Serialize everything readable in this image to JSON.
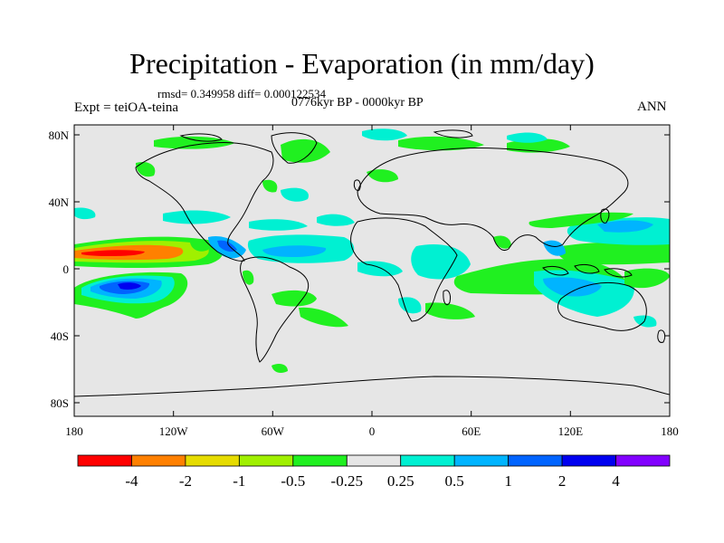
{
  "title": "Precipitation - Evaporation (in mm/day)",
  "stats": "rmsd= 0.349958 diff= 0.000122534",
  "experiment": "Expt = teiOA-teina",
  "period": "0776kyr BP - 0000kyr BP",
  "season": "ANN",
  "map": {
    "lat_ticks": [
      "80N",
      "40N",
      "0",
      "40S",
      "80S"
    ],
    "lon_ticks": [
      "180",
      "120W",
      "60W",
      "0",
      "60E",
      "120E",
      "180"
    ],
    "background_color": "#e6e6e6"
  },
  "colorbar": {
    "colors": [
      "#ff0000",
      "#ff8000",
      "#e6dc00",
      "#a0f000",
      "#20f020",
      "#e6e6e6",
      "#00f0d2",
      "#00b4ff",
      "#0064ff",
      "#0000f0",
      "#8200ff"
    ],
    "labels": [
      "-4",
      "-2",
      "-1",
      "-0.5",
      "-0.25",
      "0.25",
      "0.5",
      "1",
      "2",
      "4"
    ]
  }
}
